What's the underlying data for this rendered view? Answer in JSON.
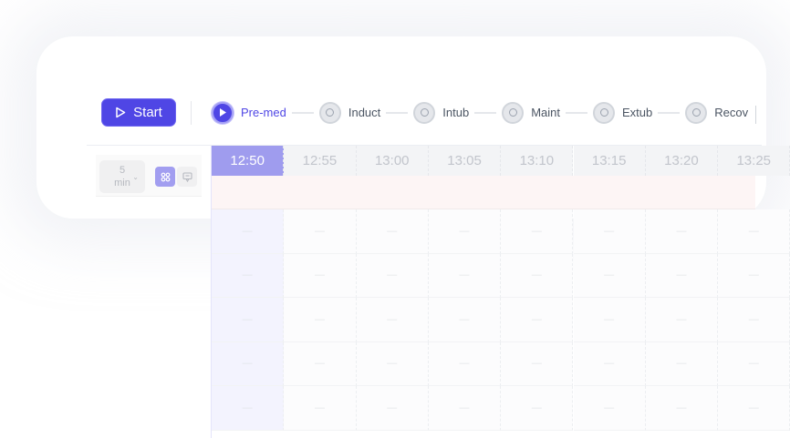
{
  "toolbar": {
    "start_label": "Start",
    "steps": [
      {
        "label": "Pre-med",
        "active": true
      },
      {
        "label": "Induct"
      },
      {
        "label": "Intub"
      },
      {
        "label": "Maint"
      },
      {
        "label": "Extub"
      },
      {
        "label": "Recov"
      }
    ]
  },
  "controls": {
    "interval_value": "5",
    "interval_unit": "min"
  },
  "colors": {
    "accent": "#4f46e5",
    "current_column": "#9f9cee"
  },
  "timeline": {
    "times": [
      "12:50",
      "12:55",
      "13:00",
      "13:05",
      "13:10",
      "13:15",
      "13:20",
      "13:25"
    ],
    "current": "12:50",
    "rows": [
      [
        "—",
        "—",
        "—",
        "—",
        "—",
        "—",
        "—",
        "—"
      ],
      [
        "—",
        "—",
        "—",
        "—",
        "—",
        "—",
        "—",
        "—"
      ],
      [
        "—",
        "—",
        "—",
        "—",
        "—",
        "—",
        "—",
        "—"
      ],
      [
        "—",
        "—",
        "—",
        "—",
        "—",
        "—",
        "—",
        "—"
      ],
      [
        "—",
        "—",
        "—",
        "—",
        "—",
        "—",
        "—",
        "—"
      ]
    ]
  }
}
